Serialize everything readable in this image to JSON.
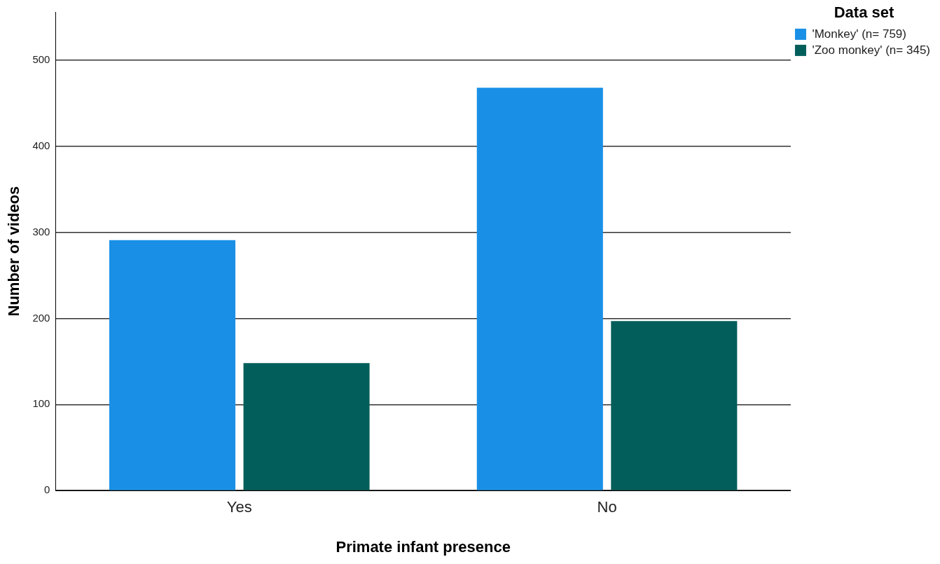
{
  "chart_data": {
    "type": "bar",
    "xlabel": "Primate infant presence",
    "ylabel": "Number of videos",
    "legend_title": "Data set",
    "categories": [
      "Yes",
      "No"
    ],
    "series": [
      {
        "name": "'Monkey' (n= 759)",
        "color": "#1990e6",
        "values": [
          291,
          468
        ]
      },
      {
        "name": "'Zoo monkey' (n= 345)",
        "color": "#025e5a",
        "values": [
          148,
          197
        ]
      }
    ],
    "ylim": [
      0,
      556
    ],
    "yticks": [
      0,
      100,
      200,
      300,
      400,
      500
    ],
    "grid": "y",
    "legend": "top right"
  }
}
